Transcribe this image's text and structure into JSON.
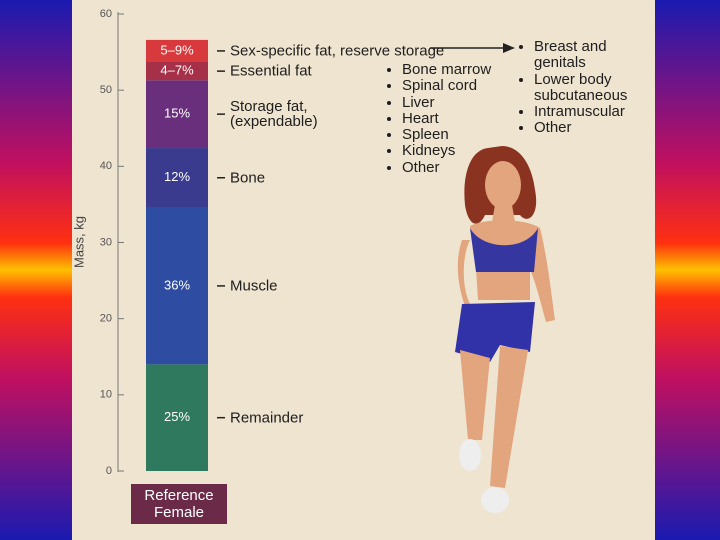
{
  "chart_data": {
    "type": "stacked_bar",
    "ylabel": "Mass, kg",
    "ylim": [
      0,
      60
    ],
    "yticks": [
      0,
      10,
      20,
      30,
      40,
      50,
      60
    ],
    "categories": [
      "Reference\nFemale"
    ],
    "series": [
      {
        "name": "Remainder",
        "label": "25%",
        "color": "#2f7a5e",
        "values": [
          14
        ]
      },
      {
        "name": "Muscle",
        "label": "36%",
        "color": "#2f4ca3",
        "values": [
          20.6
        ]
      },
      {
        "name": "Bone",
        "label": "12%",
        "color": "#3a3b8e",
        "values": [
          7.8
        ]
      },
      {
        "name": "Storage fat,\n(expendable)",
        "label": "15%",
        "color": "#6a2f7c",
        "values": [
          8.9
        ]
      },
      {
        "name": "Essential fat",
        "label": "4–7%",
        "color": "#a63048",
        "values": [
          2.4
        ]
      },
      {
        "name": "Sex-specific fat, reserve storage",
        "label": "5–9%",
        "color": "#d8393c",
        "values": [
          2.9
        ]
      }
    ],
    "essential_fat_sites": [
      "Bone marrow",
      "Spinal cord",
      "Liver",
      "Heart",
      "Spleen",
      "Kidneys",
      "Other"
    ],
    "sex_specific_sites": [
      "Breast and\ngenitals",
      "Lower body\nsubcutaneous",
      "Intramuscular",
      "Other"
    ]
  }
}
